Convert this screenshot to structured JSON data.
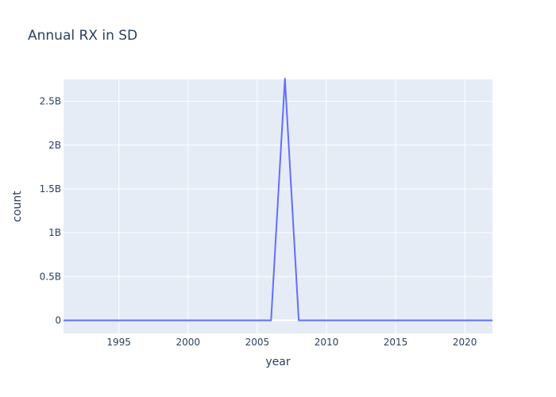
{
  "chart_data": {
    "type": "line",
    "title": "Annual RX in SD",
    "xlabel": "year",
    "ylabel": "count",
    "xlim": [
      1991,
      2022
    ],
    "ylim": [
      -150000000,
      2750000000
    ],
    "x_ticks": [
      1995,
      2000,
      2005,
      2010,
      2015,
      2020
    ],
    "y_ticks": [
      0,
      500000000,
      1000000000,
      1500000000,
      2000000000,
      2500000000
    ],
    "y_tick_labels": [
      "0",
      "0.5B",
      "1B",
      "1.5B",
      "2B",
      "2.5B"
    ],
    "grid": true,
    "legend": "none",
    "series": [
      {
        "x": [
          1991,
          1992,
          1993,
          1994,
          1995,
          1996,
          1997,
          1998,
          1999,
          2000,
          2001,
          2002,
          2003,
          2004,
          2005,
          2006,
          2007,
          2008,
          2009,
          2010,
          2011,
          2012,
          2013,
          2014,
          2015,
          2016,
          2017,
          2018,
          2019,
          2020,
          2021,
          2022
        ],
        "values": [
          0,
          0,
          0,
          0,
          0,
          0,
          0,
          0,
          0,
          0,
          0,
          0,
          0,
          0,
          0,
          0,
          2760000000,
          0,
          0,
          0,
          0,
          0,
          0,
          0,
          0,
          0,
          0,
          0,
          0,
          0,
          0,
          0
        ]
      }
    ]
  },
  "colors": {
    "plot_bg": "#e5ecf6",
    "grid": "#ffffff",
    "zero_line": "#ffffff",
    "line": "#636efa",
    "text": "#2a3f5f"
  }
}
